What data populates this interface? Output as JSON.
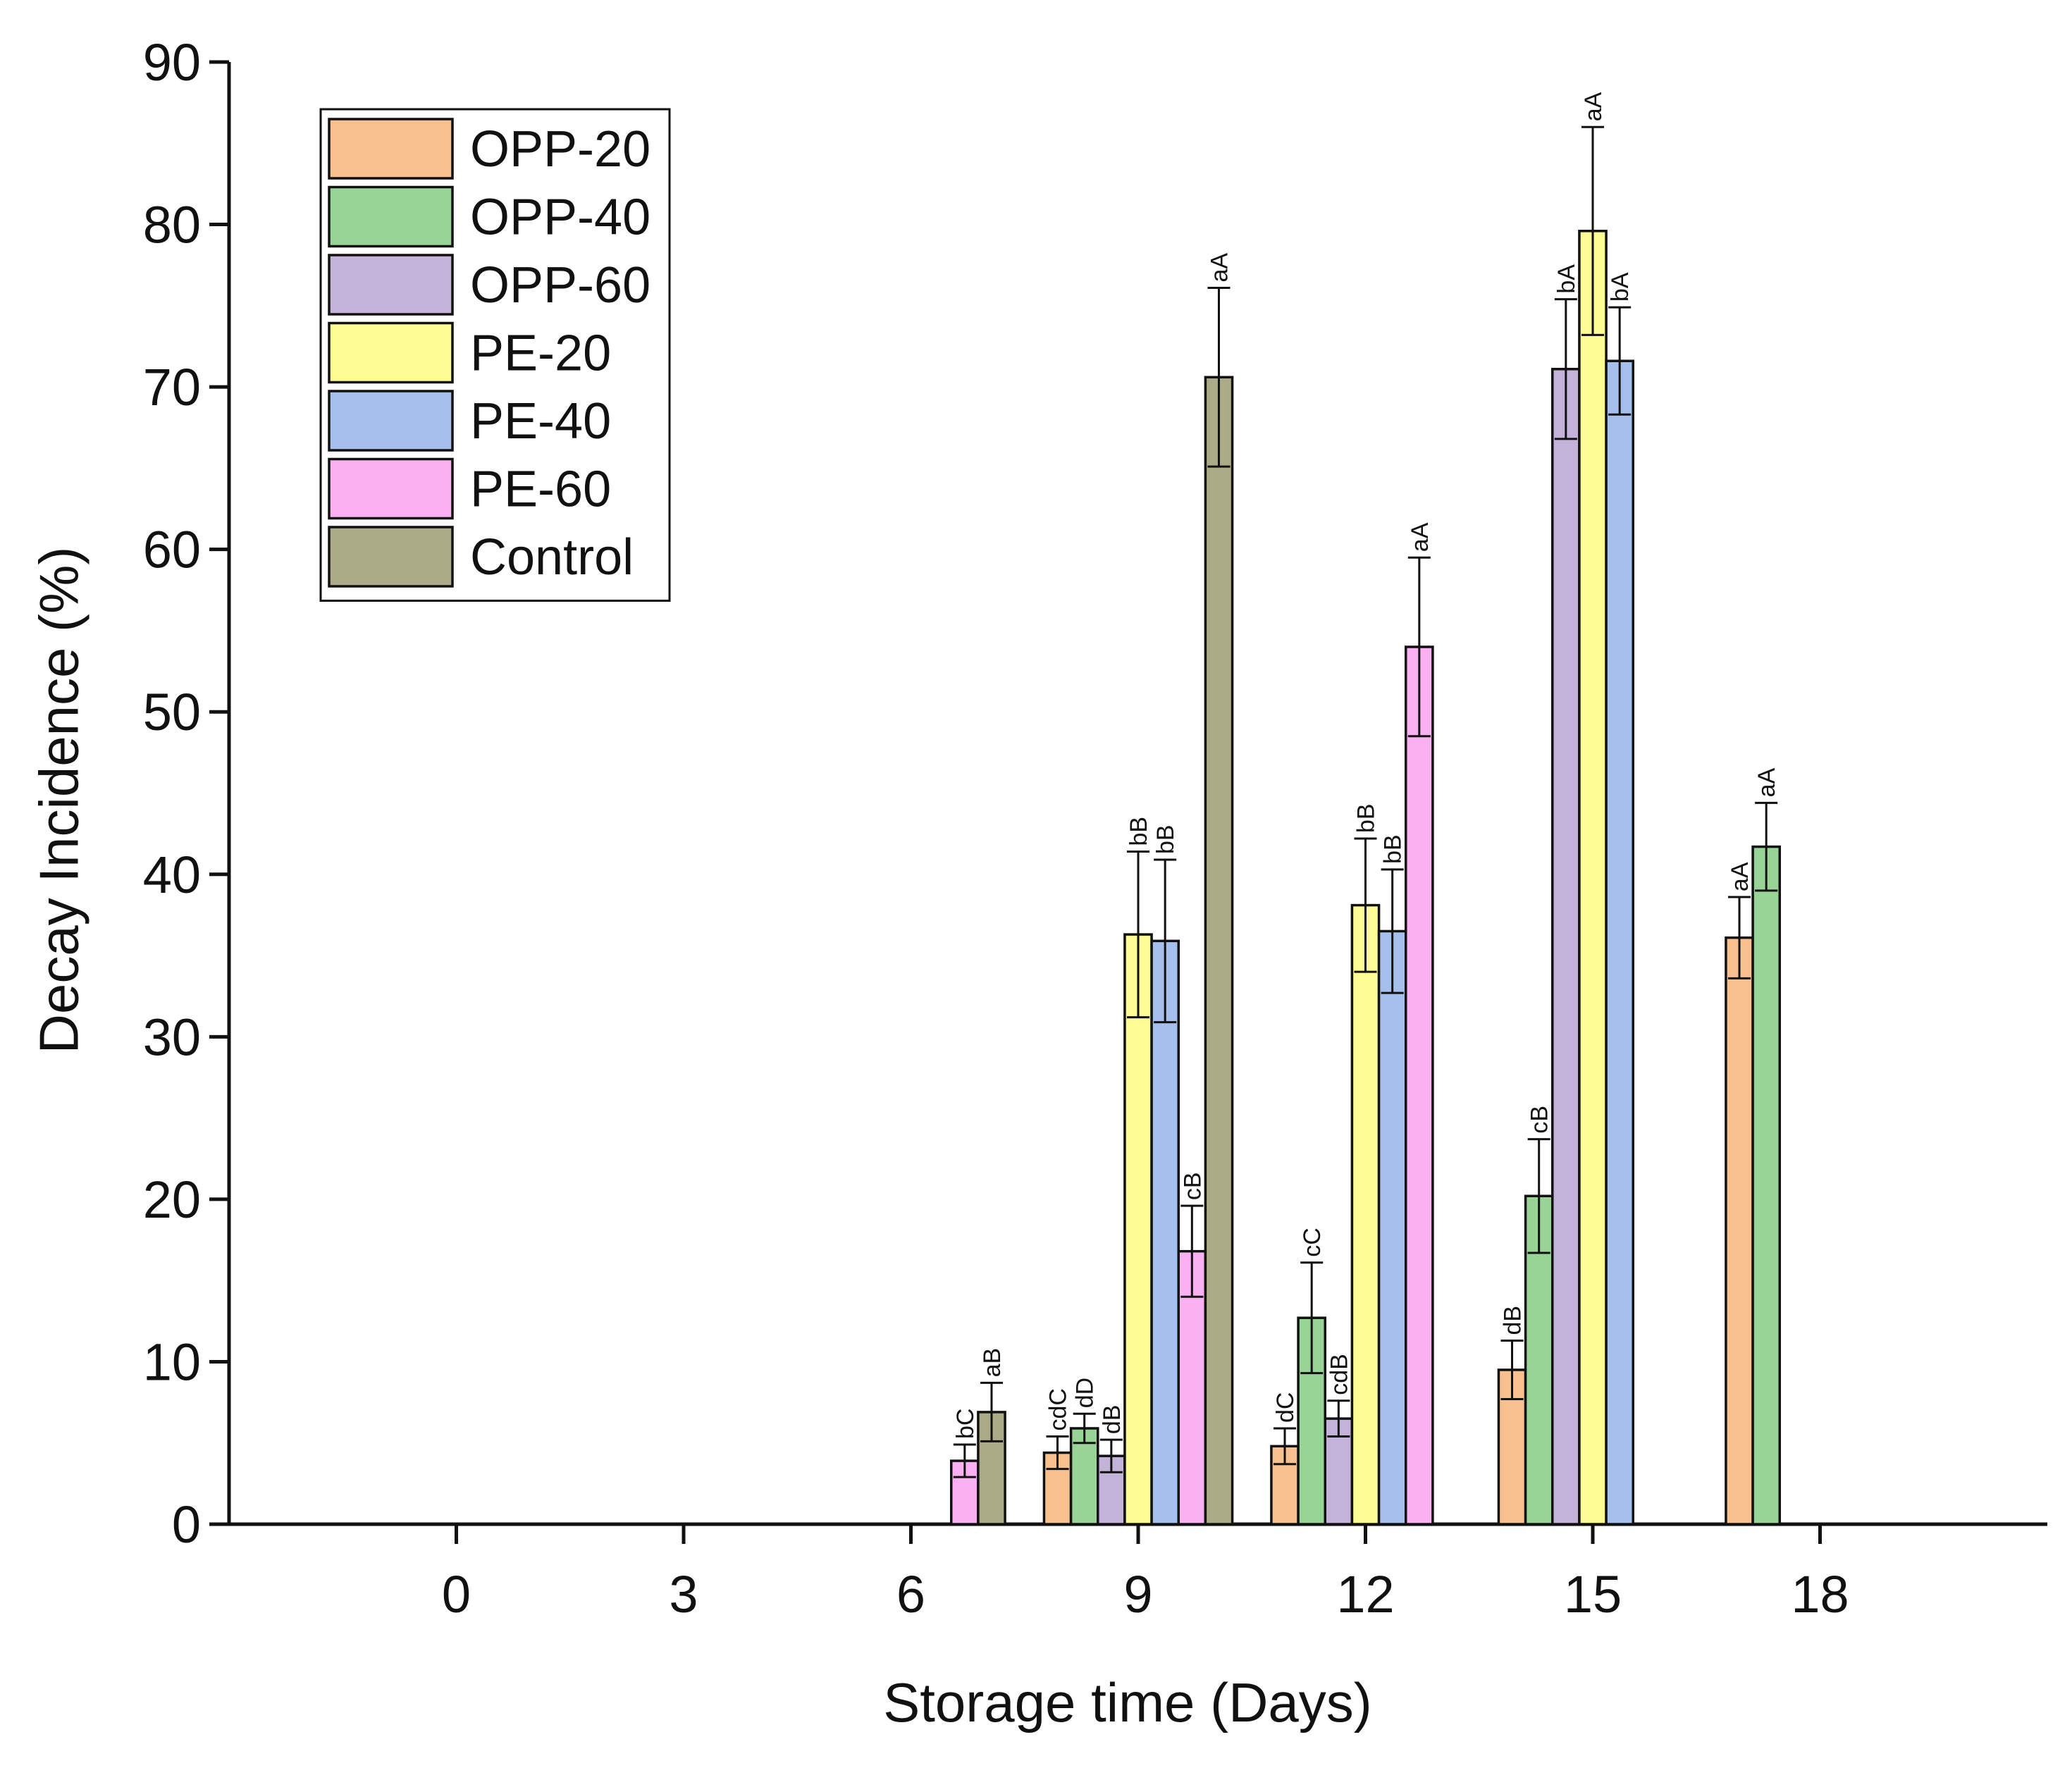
{
  "chart_data": {
    "type": "bar",
    "title": "",
    "xlabel": "Storage time (Days)",
    "ylabel": "Decay Incidence (%)",
    "ylim": [
      0,
      90
    ],
    "yticks": [
      0,
      10,
      20,
      30,
      40,
      50,
      60,
      70,
      80,
      90
    ],
    "xlim": [
      -3,
      21
    ],
    "xticks": [
      0,
      3,
      6,
      9,
      12,
      15,
      18
    ],
    "grid": false,
    "legend_position": "top-left",
    "series": [
      {
        "name": "OPP-20",
        "color": "#f9c08f",
        "points": [
          {
            "x": 9,
            "value": 4.4,
            "error": 1.0,
            "label": "cdC"
          },
          {
            "x": 12,
            "value": 4.8,
            "error": 1.1,
            "label": "dC"
          },
          {
            "x": 15,
            "value": 9.5,
            "error": 1.8,
            "label": "dB"
          },
          {
            "x": 18,
            "value": 36.1,
            "error": 2.5,
            "label": "aA"
          }
        ]
      },
      {
        "name": "OPP-40",
        "color": "#99d497",
        "points": [
          {
            "x": 9,
            "value": 5.9,
            "error": 0.9,
            "label": "dD"
          },
          {
            "x": 12,
            "value": 12.7,
            "error": 3.4,
            "label": "cC"
          },
          {
            "x": 15,
            "value": 20.2,
            "error": 3.5,
            "label": "cB"
          },
          {
            "x": 18,
            "value": 41.7,
            "error": 2.7,
            "label": "aA"
          }
        ]
      },
      {
        "name": "OPP-60",
        "color": "#c3b3d8",
        "points": [
          {
            "x": 9,
            "value": 4.2,
            "error": 1.0,
            "label": "dB"
          },
          {
            "x": 12,
            "value": 6.5,
            "error": 1.1,
            "label": "cdB"
          },
          {
            "x": 15,
            "value": 71.1,
            "error": 4.3,
            "label": "bA"
          }
        ]
      },
      {
        "name": "PE-20",
        "color": "#fdfc95",
        "points": [
          {
            "x": 9,
            "value": 36.3,
            "error": 5.1,
            "label": "bB"
          },
          {
            "x": 12,
            "value": 38.1,
            "error": 4.1,
            "label": "bB"
          },
          {
            "x": 15,
            "value": 79.6,
            "error": 6.4,
            "label": "aA"
          }
        ]
      },
      {
        "name": "PE-40",
        "color": "#a5c0ec",
        "points": [
          {
            "x": 9,
            "value": 35.9,
            "error": 5.0,
            "label": "bB"
          },
          {
            "x": 12,
            "value": 36.5,
            "error": 3.8,
            "label": "bB"
          },
          {
            "x": 15,
            "value": 71.6,
            "error": 3.3,
            "label": "bA"
          }
        ]
      },
      {
        "name": "PE-60",
        "color": "#f9b1f1",
        "points": [
          {
            "x": 6,
            "value": 3.9,
            "error": 1.0,
            "label": "bC"
          },
          {
            "x": 9,
            "value": 16.8,
            "error": 2.8,
            "label": "cB"
          },
          {
            "x": 12,
            "value": 54.0,
            "error": 5.5,
            "label": "aA"
          }
        ]
      },
      {
        "name": "Control",
        "color": "#abab88",
        "points": [
          {
            "x": 6,
            "value": 6.9,
            "error": 1.8,
            "label": "aB"
          },
          {
            "x": 9,
            "value": 70.6,
            "error": 5.5,
            "label": "aA"
          }
        ]
      }
    ]
  }
}
